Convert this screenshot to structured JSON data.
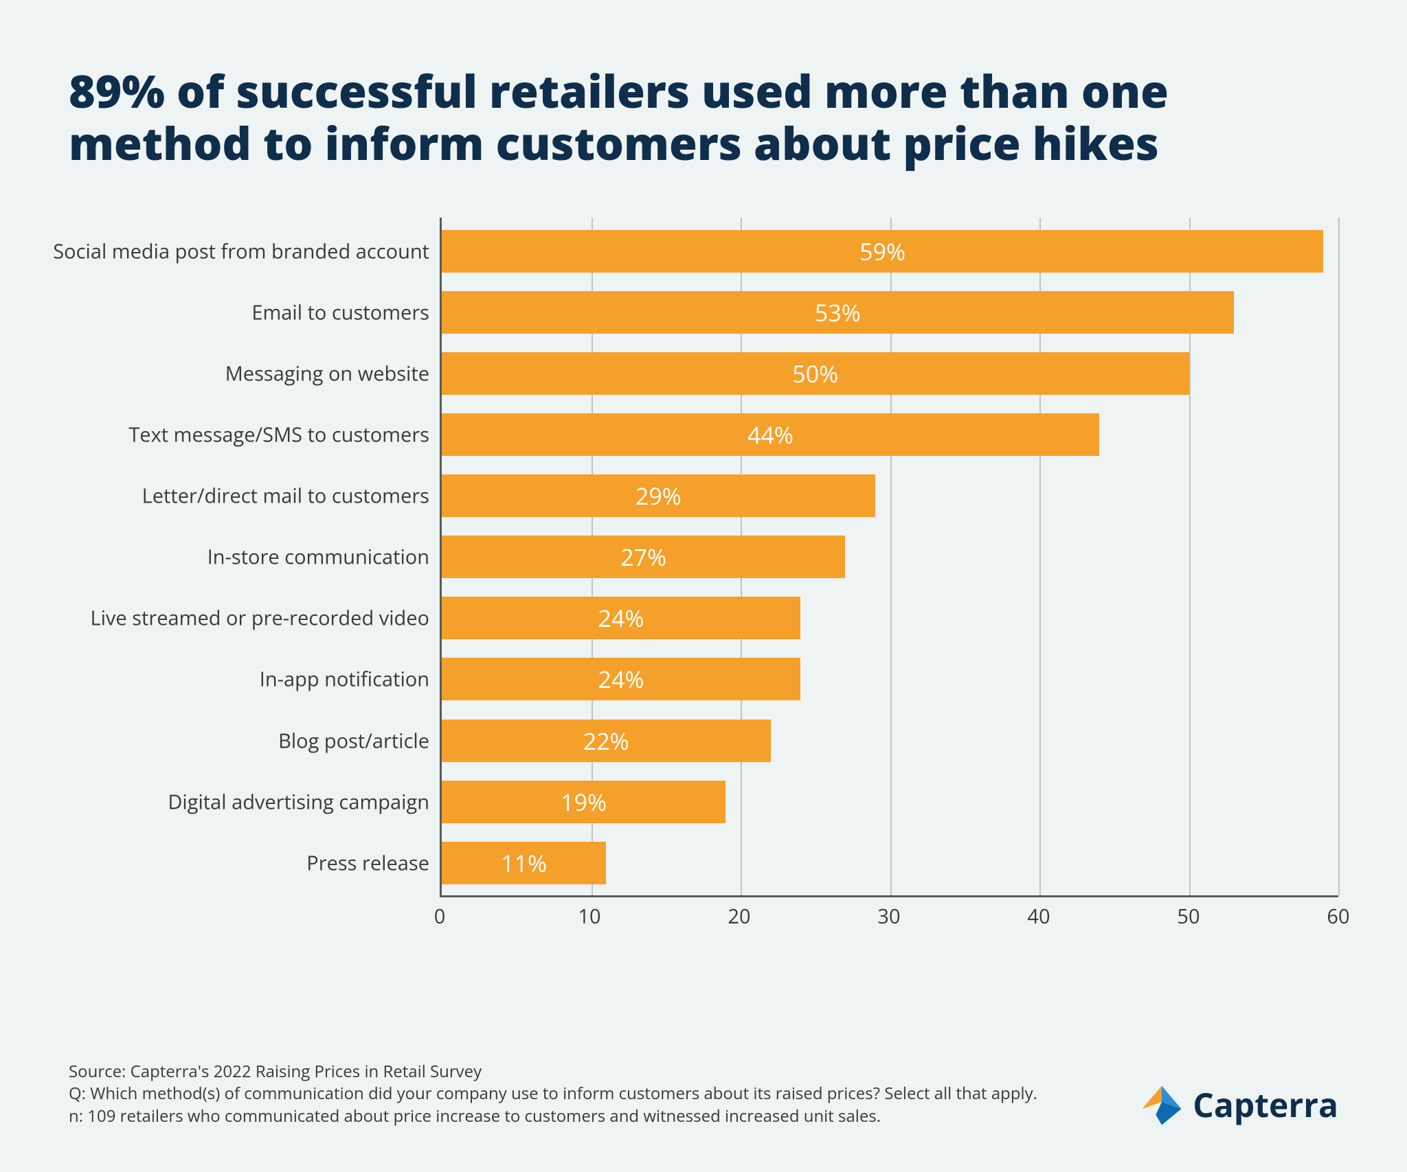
{
  "title": "89% of successful retailers used more than one method to inform customers about price hikes",
  "title_fontsize": 66,
  "title_color": "#0f2e4c",
  "background_color": "#eef3f3",
  "chart": {
    "type": "bar-horizontal",
    "bar_color": "#f5a02a",
    "value_label_color": "#ffffff",
    "value_label_fontsize": 34,
    "category_label_color": "#3a3a3a",
    "category_label_fontsize": 29,
    "axis_color": "#5a5a5a",
    "grid_color": "#bfc4c5",
    "xmin": 0,
    "xmax": 60,
    "xtick_step": 10,
    "xticks": [
      0,
      10,
      20,
      30,
      40,
      50,
      60
    ],
    "xtick_fontsize": 29,
    "bars": [
      {
        "label": "Social media post from branded account",
        "value": 59,
        "display": "59%"
      },
      {
        "label": "Email to customers",
        "value": 53,
        "display": "53%"
      },
      {
        "label": "Messaging on website",
        "value": 50,
        "display": "50%"
      },
      {
        "label": "Text message/SMS to customers",
        "value": 44,
        "display": "44%"
      },
      {
        "label": "Letter/direct mail to customers",
        "value": 29,
        "display": "29%"
      },
      {
        "label": "In-store communication",
        "value": 27,
        "display": "27%"
      },
      {
        "label": "Live streamed or pre-recorded video",
        "value": 24,
        "display": "24%"
      },
      {
        "label": "In-app notification",
        "value": 24,
        "display": "24%"
      },
      {
        "label": "Blog post/article",
        "value": 22,
        "display": "22%"
      },
      {
        "label": "Digital advertising campaign",
        "value": 19,
        "display": "19%"
      },
      {
        "label": "Press release",
        "value": 11,
        "display": "11%"
      }
    ]
  },
  "footer": {
    "source": "Source: Capterra's 2022 Raising Prices in Retail Survey",
    "question": "Q: Which method(s) of communication did your company use to inform customers about its raised prices? Select all that apply.",
    "n": "n: 109 retailers who communicated about price increase to customers and witnessed increased unit sales.",
    "fontsize": 24,
    "color": "#3a3a3a"
  },
  "logo": {
    "text": "Capterra",
    "color": "#0f2e4c",
    "fontsize": 48,
    "mark_colors": {
      "left": "#f5a02a",
      "top": "#2f8fd4",
      "right": "#0f6bb0"
    }
  }
}
